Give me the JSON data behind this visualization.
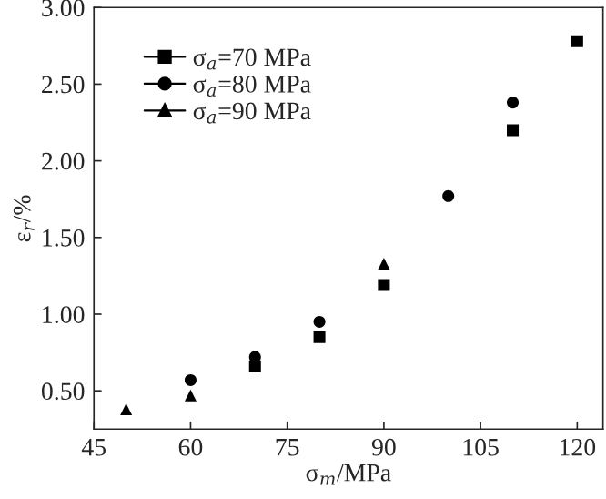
{
  "chart_data": {
    "type": "scatter",
    "xlabel": "σ$_{m}$/MPa",
    "ylabel": "ε$_{r}$/%",
    "xlim": [
      45,
      124
    ],
    "xticks": [
      45,
      60,
      75,
      90,
      105,
      120
    ],
    "ylim": [
      0.25,
      3.0
    ],
    "yticks": [
      {
        "value": 0.5,
        "label": "0.50"
      },
      {
        "value": 1.0,
        "label": "1.00"
      },
      {
        "value": 1.5,
        "label": "1.50"
      },
      {
        "value": 2.0,
        "label": "2.00"
      },
      {
        "value": 2.5,
        "label": "2.50"
      },
      {
        "value": 3.0,
        "label": "3.00"
      }
    ],
    "grid": false,
    "legend": "top left",
    "series": [
      {
        "name": "σ$_{a}$=70 MPa",
        "color": "#000000",
        "marker": "square",
        "x": [
          70,
          80,
          90,
          110,
          120
        ],
        "values": [
          0.66,
          0.85,
          1.19,
          2.2,
          2.78
        ]
      },
      {
        "name": "σ$_{a}$=80 MPa",
        "color": "#000000",
        "marker": "circle",
        "x": [
          60,
          70,
          80,
          100,
          110
        ],
        "values": [
          0.57,
          0.72,
          0.95,
          1.77,
          2.38
        ]
      },
      {
        "name": "σ$_{a}$=90 MPa",
        "color": "#000000",
        "marker": "triangle",
        "x": [
          50,
          60,
          70,
          90
        ],
        "values": [
          0.38,
          0.47,
          null,
          1.33
        ]
      }
    ]
  }
}
